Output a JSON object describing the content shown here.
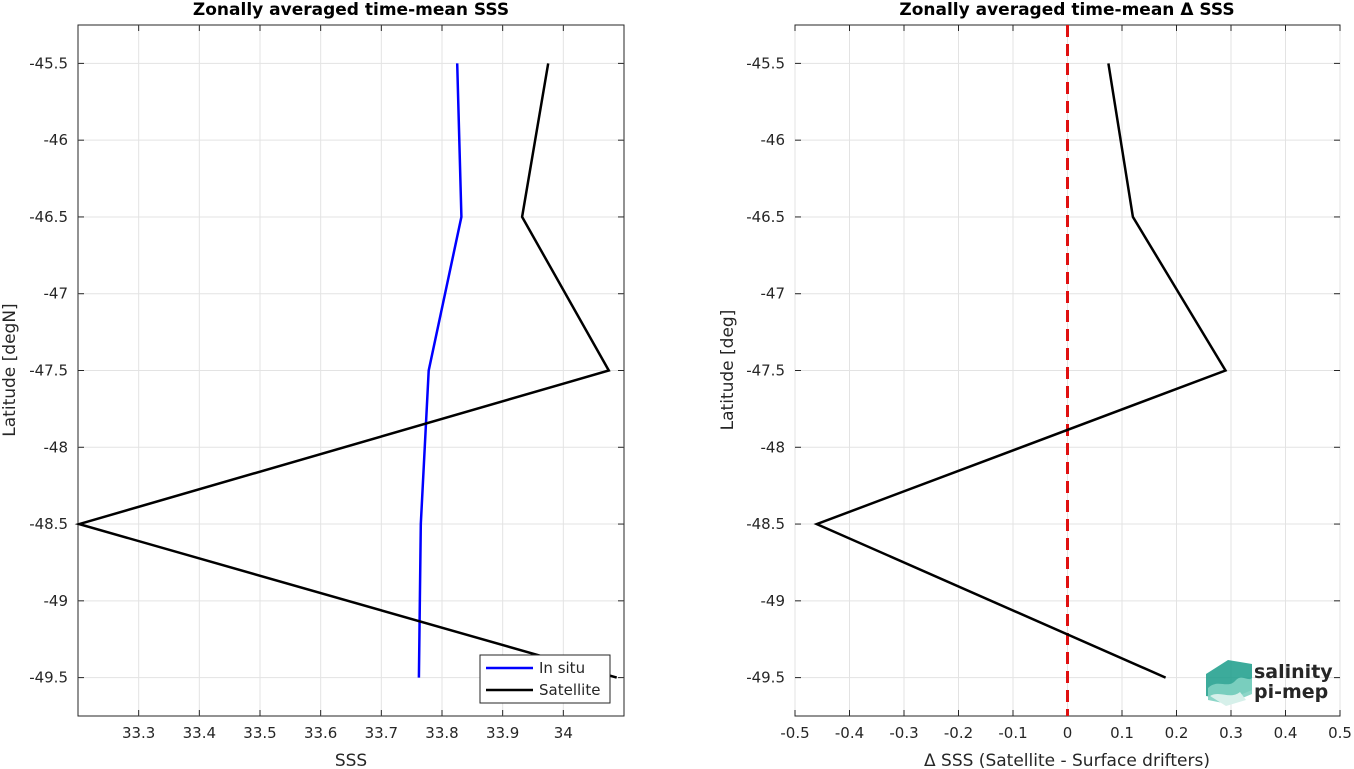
{
  "chart_data": [
    {
      "type": "line",
      "title": "Zonally averaged time-mean SSS",
      "xlabel": "SSS",
      "ylabel": "Latitude [degN]",
      "xlim": [
        33.2,
        34.1
      ],
      "ylim": [
        -49.75,
        -45.25
      ],
      "y_reversed": true,
      "grid": true,
      "xticks": [
        "33.3",
        "33.4",
        "33.5",
        "33.6",
        "33.7",
        "33.8",
        "33.9",
        "34"
      ],
      "xtick_values": [
        33.3,
        33.4,
        33.5,
        33.6,
        33.7,
        33.8,
        33.9,
        34.0
      ],
      "yticks": [
        "-45.5",
        "-46",
        "-46.5",
        "-47",
        "-47.5",
        "-48",
        "-48.5",
        "-49",
        "-49.5"
      ],
      "ytick_values": [
        -45.5,
        -46,
        -46.5,
        -47,
        -47.5,
        -48,
        -48.5,
        -49,
        -49.5
      ],
      "y": [
        -45.5,
        -46.5,
        -47.5,
        -48.5,
        -49.5
      ],
      "legend_position": "bottom-right",
      "series": [
        {
          "name": "In situ",
          "color": "#0000ff",
          "x": [
            33.825,
            33.832,
            33.778,
            33.765,
            33.762
          ]
        },
        {
          "name": "Satellite",
          "color": "#000000",
          "x": [
            33.975,
            33.932,
            34.075,
            33.202,
            34.088
          ]
        }
      ]
    },
    {
      "type": "line",
      "title": "Zonally averaged time-mean Δ SSS",
      "xlabel": "Δ SSS (Satellite - Surface drifters)",
      "ylabel": "Latitude [deg]",
      "xlim": [
        -0.5,
        0.5
      ],
      "ylim": [
        -49.75,
        -45.25
      ],
      "y_reversed": true,
      "grid": true,
      "xticks": [
        "-0.5",
        "-0.4",
        "-0.3",
        "-0.2",
        "-0.1",
        "0",
        "0.1",
        "0.2",
        "0.3",
        "0.4",
        "0.5"
      ],
      "xtick_values": [
        -0.5,
        -0.4,
        -0.3,
        -0.2,
        -0.1,
        0,
        0.1,
        0.2,
        0.3,
        0.4,
        0.5
      ],
      "yticks": [
        "-45.5",
        "-46",
        "-46.5",
        "-47",
        "-47.5",
        "-48",
        "-48.5",
        "-49",
        "-49.5"
      ],
      "ytick_values": [
        -45.5,
        -46,
        -46.5,
        -47,
        -47.5,
        -48,
        -48.5,
        -49,
        -49.5
      ],
      "y": [
        -45.5,
        -46.5,
        -47.5,
        -48.5,
        -49.5
      ],
      "reference_line": {
        "x": 0,
        "color": "#e01010",
        "style": "dashed"
      },
      "series": [
        {
          "color": "#000000",
          "x": [
            0.075,
            0.12,
            0.29,
            -0.46,
            0.18
          ]
        }
      ]
    }
  ],
  "logo": {
    "line1": "salinity",
    "line2": "pi-mep",
    "color": "#1a9c8a"
  }
}
